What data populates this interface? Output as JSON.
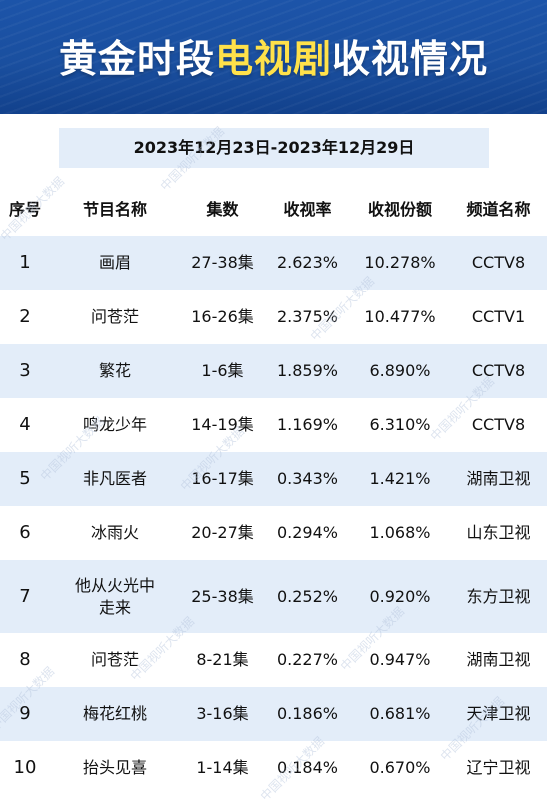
{
  "header": {
    "title_part1": "黄金时段",
    "title_part2": "电视剧",
    "title_part3": "收视情况",
    "date_range": "2023年12月23日-2023年12月29日"
  },
  "table": {
    "columns": [
      "序号",
      "节目名称",
      "集数",
      "收视率",
      "收视份额",
      "频道名称"
    ],
    "rows": [
      {
        "rank": "1",
        "name": "画眉",
        "episodes": "27-38集",
        "rating": "2.623%",
        "share": "10.278%",
        "channel": "CCTV8"
      },
      {
        "rank": "2",
        "name": "问苍茫",
        "episodes": "16-26集",
        "rating": "2.375%",
        "share": "10.477%",
        "channel": "CCTV1"
      },
      {
        "rank": "3",
        "name": "繁花",
        "episodes": "1-6集",
        "rating": "1.859%",
        "share": "6.890%",
        "channel": "CCTV8"
      },
      {
        "rank": "4",
        "name": "鸣龙少年",
        "episodes": "14-19集",
        "rating": "1.169%",
        "share": "6.310%",
        "channel": "CCTV8"
      },
      {
        "rank": "5",
        "name": "非凡医者",
        "episodes": "16-17集",
        "rating": "0.343%",
        "share": "1.421%",
        "channel": "湖南卫视"
      },
      {
        "rank": "6",
        "name": "冰雨火",
        "episodes": "20-27集",
        "rating": "0.294%",
        "share": "1.068%",
        "channel": "山东卫视"
      },
      {
        "rank": "7",
        "name_line1": "他从火光中",
        "name_line2": "走来",
        "episodes": "25-38集",
        "rating": "0.252%",
        "share": "0.920%",
        "channel": "东方卫视"
      },
      {
        "rank": "8",
        "name": "问苍茫",
        "episodes": "8-21集",
        "rating": "0.227%",
        "share": "0.947%",
        "channel": "湖南卫视"
      },
      {
        "rank": "9",
        "name": "梅花红桃",
        "episodes": "3-16集",
        "rating": "0.186%",
        "share": "0.681%",
        "channel": "天津卫视"
      },
      {
        "rank": "10",
        "name": "抬头见喜",
        "episodes": "1-14集",
        "rating": "0.184%",
        "share": "0.670%",
        "channel": "辽宁卫视"
      }
    ]
  },
  "watermark": "中国视听大数据"
}
